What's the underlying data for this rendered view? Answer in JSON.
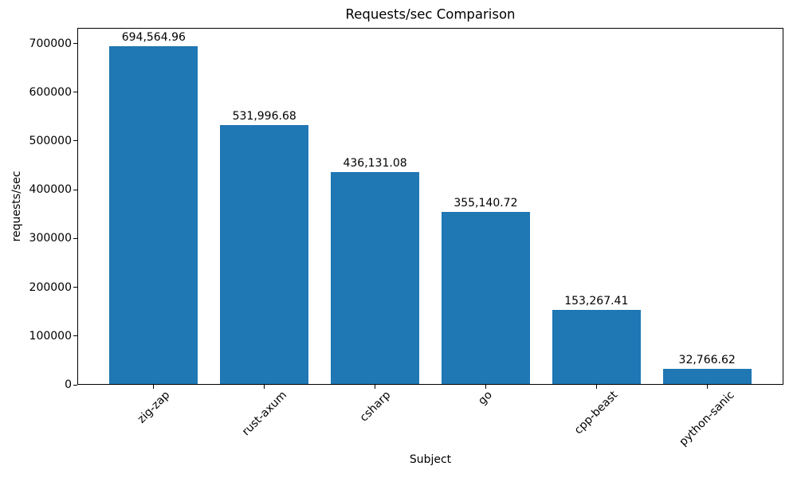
{
  "chart_data": {
    "type": "bar",
    "title": "Requests/sec Comparison",
    "xlabel": "Subject",
    "ylabel": "requests/sec",
    "categories": [
      "zig-zap",
      "rust-axum",
      "csharp",
      "go",
      "cpp-beast",
      "python-sanic"
    ],
    "values": [
      694564.96,
      531996.68,
      436131.08,
      355140.72,
      153267.41,
      32766.62
    ],
    "bar_labels": [
      "694,564.96",
      "531,996.68",
      "436,131.08",
      "355,140.72",
      "153,267.41",
      "32,766.62"
    ],
    "yticks": [
      0,
      100000,
      200000,
      300000,
      400000,
      500000,
      600000,
      700000
    ],
    "ytick_labels": [
      "0",
      "100000",
      "200000",
      "300000",
      "400000",
      "500000",
      "600000",
      "700000"
    ],
    "ylim": [
      0,
      732000
    ],
    "bar_color": "#1f77b4",
    "axis_color": "#000000",
    "text_color": "#000000",
    "background_color": "#ffffff",
    "grid": false,
    "legend": false,
    "x_tick_rotation": 45
  }
}
